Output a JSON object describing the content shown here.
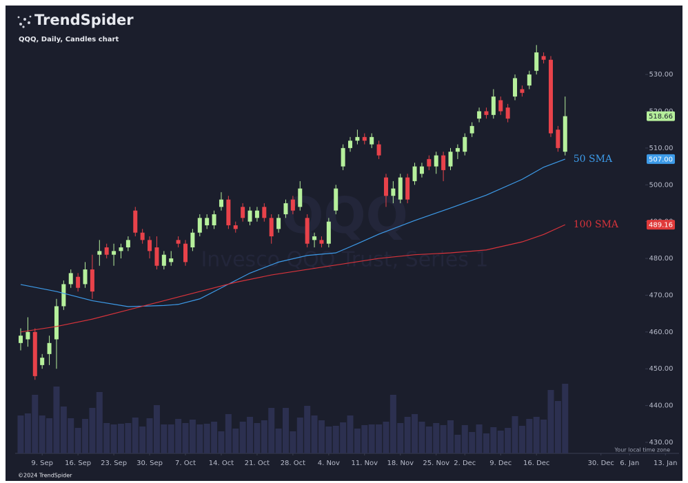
{
  "header": {
    "brand": "TrendSpider",
    "chart_title": "QQQ, Daily, Candles chart"
  },
  "chart_data": {
    "type": "candlestick",
    "watermark": "QQQ",
    "watermark_subtitle": "Invesco QQQ Trust, Series 1",
    "up_color": "#b6f09c",
    "down_color": "#e8424a",
    "volume_color": "#2c3050",
    "ohlc": [
      [
        457,
        461,
        455,
        459
      ],
      [
        458,
        464,
        456,
        460
      ],
      [
        460,
        461,
        447,
        448
      ],
      [
        451,
        454,
        450,
        453
      ],
      [
        454,
        459,
        451,
        457
      ],
      [
        458,
        469,
        450,
        467
      ],
      [
        467,
        474,
        466,
        473
      ],
      [
        473,
        477,
        472,
        476
      ],
      [
        475,
        476,
        471,
        472
      ],
      [
        473,
        479,
        472,
        477
      ],
      [
        477,
        481,
        469,
        471
      ],
      [
        481,
        485,
        478,
        482
      ],
      [
        483,
        484,
        480,
        481
      ],
      [
        481,
        484,
        478,
        482
      ],
      [
        482,
        484,
        480,
        483
      ],
      [
        483,
        486,
        482,
        485
      ],
      [
        493,
        494,
        486,
        487
      ],
      [
        487,
        488,
        484,
        485
      ],
      [
        485,
        486,
        480,
        482
      ],
      [
        483,
        486,
        477,
        478
      ],
      [
        478,
        482,
        477,
        481
      ],
      [
        479,
        482,
        478,
        480
      ],
      [
        485,
        486,
        483,
        484
      ],
      [
        484,
        485,
        478,
        479
      ],
      [
        483,
        488,
        482,
        487
      ],
      [
        487,
        492,
        486,
        491
      ],
      [
        489,
        492,
        488,
        491
      ],
      [
        489,
        493,
        488,
        492
      ],
      [
        494,
        498,
        493,
        496
      ],
      [
        496,
        497,
        488,
        489
      ],
      [
        489,
        490,
        487,
        488
      ],
      [
        494,
        495,
        490,
        491
      ],
      [
        490,
        494,
        489,
        493
      ],
      [
        491,
        494,
        490,
        493
      ],
      [
        494,
        495,
        490,
        491
      ],
      [
        491,
        492,
        484,
        486
      ],
      [
        488,
        492,
        487,
        491
      ],
      [
        492,
        496,
        491,
        495
      ],
      [
        496,
        497,
        492,
        493
      ],
      [
        494,
        501,
        493,
        499
      ],
      [
        491,
        492,
        483,
        484
      ],
      [
        485,
        487,
        483,
        486
      ],
      [
        485,
        486,
        483,
        484
      ],
      [
        484,
        491,
        483,
        490
      ],
      [
        493,
        500,
        492,
        499
      ],
      [
        505,
        511,
        504,
        510
      ],
      [
        510,
        513,
        509,
        512
      ],
      [
        512,
        515,
        511,
        513
      ],
      [
        513,
        514,
        511,
        512
      ],
      [
        511,
        514,
        510,
        513
      ],
      [
        511,
        512,
        507,
        508
      ],
      [
        502,
        503,
        494,
        497
      ],
      [
        497,
        501,
        495,
        499
      ],
      [
        496,
        503,
        495,
        502
      ],
      [
        502,
        503,
        495,
        496
      ],
      [
        501,
        506,
        500,
        505
      ],
      [
        503,
        506,
        502,
        505
      ],
      [
        507,
        508,
        504,
        505
      ],
      [
        505,
        509,
        503,
        508
      ],
      [
        508,
        509,
        501,
        504
      ],
      [
        505,
        510,
        504,
        509
      ],
      [
        509,
        511,
        507,
        510
      ],
      [
        509,
        514,
        508,
        513
      ],
      [
        514,
        517,
        513,
        516
      ],
      [
        518,
        521,
        517,
        520
      ],
      [
        520,
        521,
        518,
        519
      ],
      [
        519,
        526,
        518,
        524
      ],
      [
        523,
        524,
        519,
        520
      ],
      [
        521,
        522,
        517,
        518
      ],
      [
        524,
        530,
        523,
        529
      ],
      [
        526,
        527,
        524,
        525
      ],
      [
        527,
        531,
        526,
        530
      ],
      [
        531,
        538,
        530,
        536
      ],
      [
        535,
        536,
        533,
        534
      ],
      [
        534,
        535,
        513,
        514
      ],
      [
        515,
        516,
        509,
        510
      ],
      [
        509,
        524,
        508,
        518.66
      ]
    ],
    "volume": [
      27.5,
      29,
      42.5,
      27.5,
      25.5,
      48.5,
      34,
      25.5,
      18.5,
      25,
      33,
      44.5,
      22,
      21,
      21.5,
      22,
      26,
      19.5,
      25.5,
      35,
      21,
      21,
      25,
      22,
      24.5,
      21,
      21.5,
      23,
      16,
      28.5,
      18,
      23,
      26.5,
      22,
      24,
      33,
      18,
      33,
      16,
      26,
      34.5,
      27.5,
      24,
      19.5,
      20,
      22.5,
      27.5,
      18,
      20.5,
      21,
      21,
      23,
      42.5,
      22,
      26.5,
      28.5,
      23,
      19.5,
      22,
      20.5,
      24,
      13.5,
      20.5,
      15.5,
      21,
      14.5,
      19,
      16.5,
      18.5,
      27,
      20,
      25,
      26.5,
      24.5,
      46,
      38,
      50.5
    ],
    "volume_lim": [
      0,
      60
    ],
    "xlim": [
      -0.77,
      91.9
    ],
    "xticks": [
      {
        "value": 3,
        "label": "9. Sep"
      },
      {
        "value": 8,
        "label": "16. Sep"
      },
      {
        "value": 13,
        "label": "23. Sep"
      },
      {
        "value": 18,
        "label": "30. Sep"
      },
      {
        "value": 23,
        "label": "7. Oct"
      },
      {
        "value": 28,
        "label": "14. Oct"
      },
      {
        "value": 33,
        "label": "21. Oct"
      },
      {
        "value": 38,
        "label": "28. Oct"
      },
      {
        "value": 43,
        "label": "4. Nov"
      },
      {
        "value": 48,
        "label": "11. Nov"
      },
      {
        "value": 53,
        "label": "18. Nov"
      },
      {
        "value": 58,
        "label": "25. Nov"
      },
      {
        "value": 62,
        "label": "2. Dec"
      },
      {
        "value": 67,
        "label": "9. Dec"
      },
      {
        "value": 72,
        "label": "16. Dec"
      },
      {
        "value": 81,
        "label": "30. Dec"
      },
      {
        "value": 85,
        "label": "6. Jan"
      },
      {
        "value": 90,
        "label": "13. Jan"
      }
    ],
    "ylim": [
      427,
      548
    ],
    "yticks": [
      {
        "value": 430,
        "label": "430.00"
      },
      {
        "value": 440,
        "label": "440.00"
      },
      {
        "value": 450,
        "label": "450.00"
      },
      {
        "value": 460,
        "label": "460.00"
      },
      {
        "value": 470,
        "label": "470.00"
      },
      {
        "value": 480,
        "label": "480.00"
      },
      {
        "value": 490,
        "label": "490.00"
      },
      {
        "value": 500,
        "label": "500.00"
      },
      {
        "value": 510,
        "label": "510.00"
      },
      {
        "value": 520,
        "label": "520.00"
      },
      {
        "value": 530,
        "label": "530.00"
      }
    ],
    "series": [
      {
        "name": "50 SMA",
        "color": "#3d9be9",
        "x": [
          0,
          5,
          10,
          15,
          20,
          22,
          25,
          28,
          32,
          36,
          40,
          44,
          47,
          50,
          55,
          60,
          65,
          70,
          73,
          76
        ],
        "values": [
          472.9,
          471,
          468.5,
          466.9,
          467.2,
          467.5,
          469,
          472,
          476,
          479,
          480.8,
          481.5,
          484,
          486.6,
          490.3,
          493.7,
          497.2,
          501.5,
          504.8,
          507
        ]
      },
      {
        "name": "100 SMA",
        "color": "#d8333b",
        "x": [
          0,
          5,
          10,
          15,
          20,
          25,
          30,
          35,
          40,
          45,
          50,
          55,
          60,
          65,
          70,
          73,
          76
        ],
        "values": [
          460,
          461.5,
          463.5,
          466,
          468.5,
          471,
          473.5,
          475.5,
          477,
          478.5,
          480,
          481,
          481.5,
          482.3,
          484.5,
          486.5,
          489.16
        ]
      }
    ],
    "price_tags": [
      {
        "value": 518.66,
        "label": "518.66",
        "color": "#b6f09c"
      },
      {
        "value": 507,
        "label": "507.00",
        "color": "#3d9be9"
      },
      {
        "value": 489.16,
        "label": "489.16",
        "color": "#e03a3a"
      }
    ]
  },
  "footer": {
    "timezone": "Your local time zone",
    "copyright": "©2024 TrendSpider"
  }
}
